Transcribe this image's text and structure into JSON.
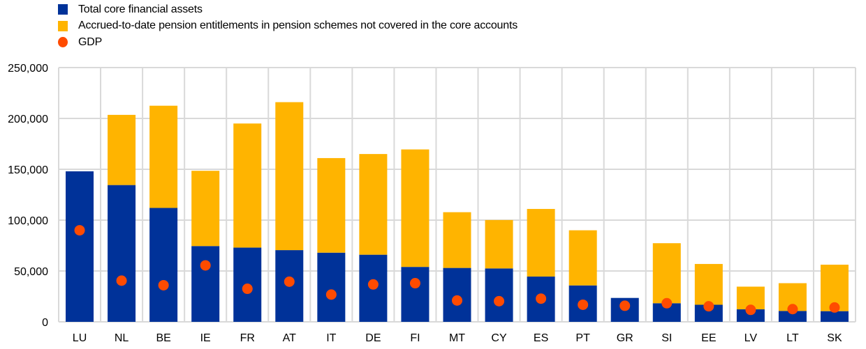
{
  "chart_data": {
    "type": "bar",
    "stacked": true,
    "title": "",
    "xlabel": "",
    "ylabel": "",
    "ylim": [
      0,
      250000
    ],
    "yticks": [
      0,
      50000,
      100000,
      150000,
      200000,
      250000
    ],
    "ytick_labels": [
      "0",
      "50,000",
      "100,000",
      "150,000",
      "200,000",
      "250,000"
    ],
    "grid": true,
    "legend_position": "top-left",
    "categories": [
      "LU",
      "NL",
      "BE",
      "IE",
      "FR",
      "AT",
      "IT",
      "DE",
      "FI",
      "MT",
      "CY",
      "ES",
      "PT",
      "GR",
      "SI",
      "EE",
      "LV",
      "LT",
      "SK"
    ],
    "series": [
      {
        "name": "Total core financial assets",
        "kind": "bar",
        "color": "#003299",
        "values": [
          148000,
          134500,
          112000,
          74500,
          73000,
          70500,
          68000,
          66000,
          54000,
          53000,
          52500,
          44500,
          35800,
          23500,
          18300,
          16800,
          12300,
          10700,
          10500
        ]
      },
      {
        "name": "Accrued-to-date pension entitlements in pension schemes not covered in the core accounts",
        "kind": "bar",
        "color": "#FFB400",
        "values": [
          0,
          69000,
          100500,
          74000,
          122000,
          145500,
          93000,
          99000,
          115500,
          54800,
          47600,
          66500,
          54200,
          0,
          59000,
          40100,
          22300,
          27300,
          45700
        ]
      },
      {
        "name": "GDP",
        "kind": "scatter",
        "color": "#FF4B00",
        "values": [
          90000,
          40500,
          36000,
          55500,
          32500,
          39500,
          26800,
          36800,
          38000,
          21000,
          20300,
          22800,
          16800,
          15800,
          18300,
          15300,
          11800,
          12500,
          14100
        ]
      }
    ]
  }
}
